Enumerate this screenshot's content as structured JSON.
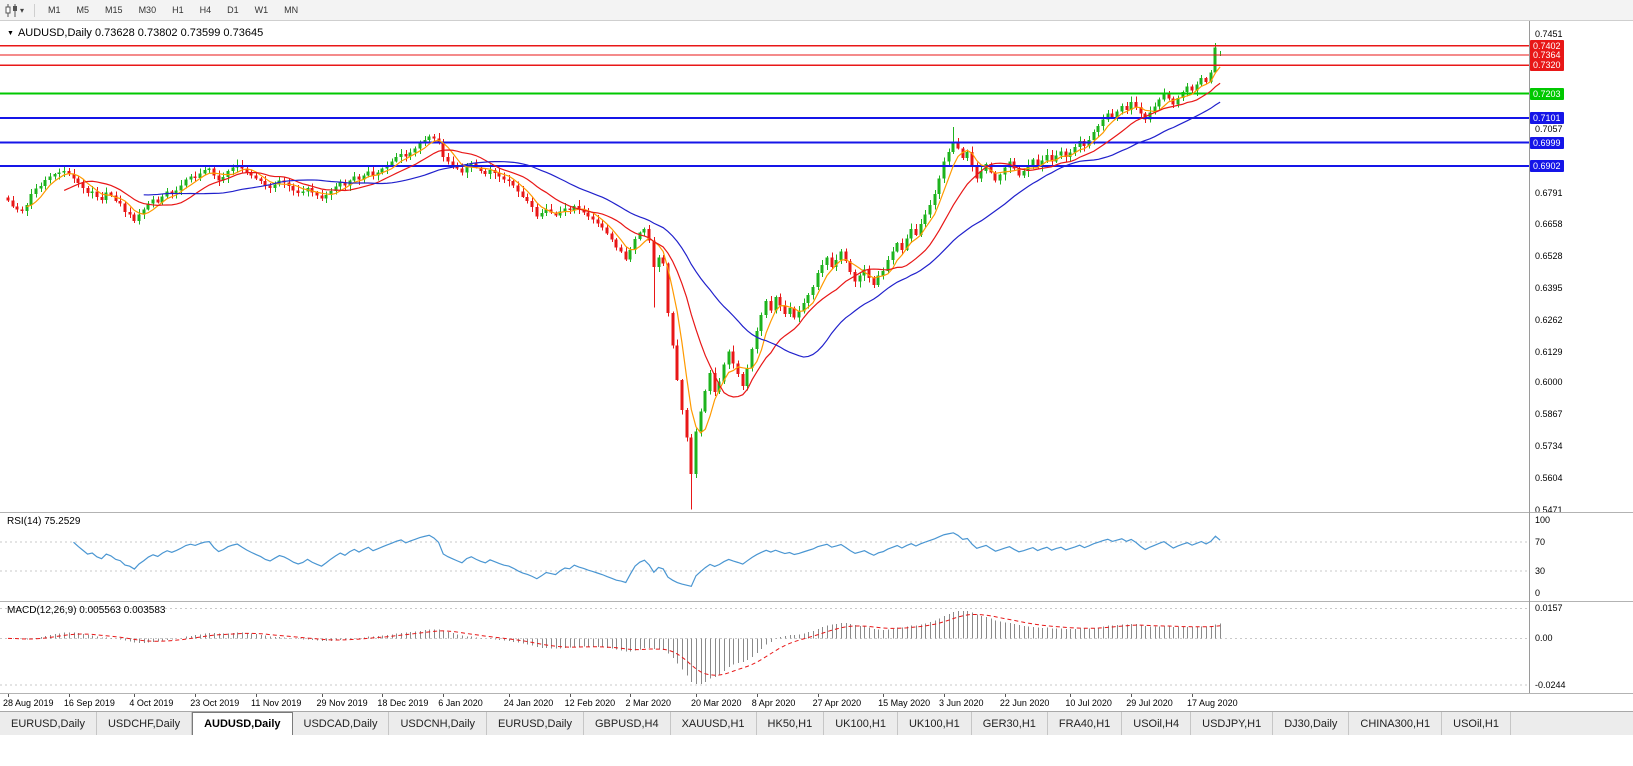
{
  "icons": {
    "chart_marker": "▼",
    "dropdown_caret": "▾"
  },
  "toolbar": {
    "timeframes": [
      "M1",
      "M5",
      "M15",
      "M30",
      "H1",
      "H4",
      "D1",
      "W1",
      "MN"
    ]
  },
  "chart": {
    "symbol_title": "AUDUSD,Daily",
    "ohlc_text": "0.73628 0.73802 0.73599 0.73645",
    "rsi_label": "RSI(14)",
    "rsi_value": "75.2529",
    "macd_label": "MACD(12,26,9)",
    "macd_values": "0.005563 0.003583"
  },
  "chart_data": {
    "type": "candlestick",
    "symbol": "AUDUSD",
    "timeframe": "Daily",
    "last_quote": {
      "open": 0.73628,
      "high": 0.73802,
      "low": 0.73599,
      "close": 0.73645
    },
    "price_range": {
      "max": 0.7505,
      "min": 0.5465
    },
    "first_open": 0.677,
    "price_axis_ticks": [
      "0.7451",
      "0.7057",
      "0.6791",
      "0.6658",
      "0.6528",
      "0.6395",
      "0.6262",
      "0.6129",
      "0.6000",
      "0.5867",
      "0.5734",
      "0.5604",
      "0.5471"
    ],
    "hlines": [
      {
        "price": 0.7402,
        "label": "0.7402",
        "color": "#e81717",
        "width": 1.4
      },
      {
        "price": 0.7364,
        "label": "0.7364",
        "color": "#e81717",
        "width": 1
      },
      {
        "price": 0.732,
        "label": "0.7320",
        "color": "#e81717",
        "width": 1.4
      },
      {
        "price": 0.7203,
        "label": "0.7203",
        "color": "#00c800",
        "width": 2
      },
      {
        "price": 0.7101,
        "label": "0.7101",
        "color": "#1515e8",
        "width": 2
      },
      {
        "price": 0.6999,
        "label": "0.6999",
        "color": "#1515e8",
        "width": 2
      },
      {
        "price": 0.6902,
        "label": "0.6902",
        "color": "#1515e8",
        "width": 2
      }
    ],
    "x_labels": [
      "28 Aug 2019",
      "16 Sep 2019",
      "4 Oct 2019",
      "23 Oct 2019",
      "11 Nov 2019",
      "29 Nov 2019",
      "18 Dec 2019",
      "6 Jan 2020",
      "24 Jan 2020",
      "12 Feb 2020",
      "2 Mar 2020",
      "20 Mar 2020",
      "8 Apr 2020",
      "27 Apr 2020",
      "15 May 2020",
      "3 Jun 2020",
      "22 Jun 2020",
      "10 Jul 2020",
      "29 Jul 2020",
      "17 Aug 2020"
    ],
    "x_label_indices": [
      0,
      13,
      27,
      40,
      53,
      67,
      80,
      93,
      107,
      120,
      133,
      147,
      160,
      173,
      187,
      200,
      213,
      227,
      240,
      253
    ],
    "closes": [
      0.6757,
      0.6732,
      0.672,
      0.6715,
      0.6738,
      0.6785,
      0.6808,
      0.6818,
      0.6843,
      0.6857,
      0.6868,
      0.6875,
      0.688,
      0.6868,
      0.685,
      0.683,
      0.681,
      0.6788,
      0.6795,
      0.6772,
      0.676,
      0.679,
      0.6778,
      0.6755,
      0.6745,
      0.671,
      0.67,
      0.6672,
      0.67,
      0.672,
      0.6745,
      0.6762,
      0.675,
      0.6775,
      0.6795,
      0.6785,
      0.68,
      0.682,
      0.6845,
      0.6858,
      0.6852,
      0.687,
      0.6885,
      0.689,
      0.6862,
      0.684,
      0.6855,
      0.688,
      0.6895,
      0.6905,
      0.689,
      0.6875,
      0.6862,
      0.685,
      0.6838,
      0.682,
      0.681,
      0.6825,
      0.684,
      0.6832,
      0.6818,
      0.68,
      0.6788,
      0.6795,
      0.681,
      0.6792,
      0.6778,
      0.6765,
      0.678,
      0.6798,
      0.6815,
      0.6832,
      0.682,
      0.6842,
      0.6858,
      0.6845,
      0.6862,
      0.6878,
      0.6862,
      0.6875,
      0.689,
      0.6905,
      0.692,
      0.6938,
      0.6952,
      0.694,
      0.6958,
      0.6975,
      0.6995,
      0.701,
      0.7025,
      0.7015,
      0.6998,
      0.6938,
      0.692,
      0.6905,
      0.689,
      0.6875,
      0.69,
      0.6912,
      0.6895,
      0.688,
      0.6868,
      0.6885,
      0.6872,
      0.6858,
      0.6845,
      0.6838,
      0.682,
      0.6795,
      0.6772,
      0.6755,
      0.673,
      0.6692,
      0.6705,
      0.672,
      0.6708,
      0.6695,
      0.6712,
      0.6725,
      0.6718,
      0.6735,
      0.672,
      0.6708,
      0.6692,
      0.6678,
      0.6662,
      0.6645,
      0.662,
      0.6595,
      0.6562,
      0.6545,
      0.6512,
      0.6552,
      0.6598,
      0.6625,
      0.664,
      0.6592,
      0.648,
      0.652,
      0.6495,
      0.629,
      0.6155,
      0.601,
      0.5885,
      0.577,
      0.562,
      0.5795,
      0.588,
      0.5965,
      0.604,
      0.596,
      0.6005,
      0.6075,
      0.613,
      0.608,
      0.6035,
      0.5985,
      0.606,
      0.614,
      0.6215,
      0.628,
      0.634,
      0.63,
      0.6355,
      0.632,
      0.6285,
      0.631,
      0.627,
      0.6295,
      0.633,
      0.6365,
      0.6398,
      0.6455,
      0.649,
      0.652,
      0.648,
      0.651,
      0.6545,
      0.6505,
      0.646,
      0.642,
      0.6445,
      0.647,
      0.6435,
      0.6405,
      0.6445,
      0.6465,
      0.651,
      0.6545,
      0.658,
      0.6552,
      0.66,
      0.664,
      0.6615,
      0.666,
      0.67,
      0.674,
      0.6785,
      0.685,
      0.692,
      0.696,
      0.7,
      0.6975,
      0.6935,
      0.696,
      0.69,
      0.685,
      0.688,
      0.691,
      0.6875,
      0.684,
      0.6865,
      0.6895,
      0.692,
      0.689,
      0.6862,
      0.688,
      0.6905,
      0.6928,
      0.6898,
      0.6925,
      0.6948,
      0.692,
      0.6945,
      0.6962,
      0.6938,
      0.6958,
      0.698,
      0.7005,
      0.6985,
      0.701,
      0.7042,
      0.7068,
      0.7095,
      0.712,
      0.7105,
      0.7128,
      0.7152,
      0.7135,
      0.7168,
      0.7148,
      0.712,
      0.7095,
      0.7125,
      0.715,
      0.7178,
      0.7205,
      0.7182,
      0.7158,
      0.7185,
      0.721,
      0.7232,
      0.7215,
      0.724,
      0.7268,
      0.7252,
      0.729,
      0.7395,
      0.73645
    ],
    "wick_low_overrides": {
      "138": 0.6313,
      "146": 0.5471
    },
    "wick_high_overrides": {
      "202": 0.7064,
      "258": 0.7413
    },
    "candle_colors": {
      "up": "#1db31d",
      "down": "#e81717"
    },
    "moving_averages": [
      {
        "period": 5,
        "color": "#ff9a00"
      },
      {
        "period": 13,
        "color": "#e81717"
      },
      {
        "period": 30,
        "color": "#2121cc"
      }
    ],
    "rsi": {
      "period": 14,
      "levels": [
        "100",
        "70",
        "30",
        "0"
      ],
      "level_values": [
        100,
        70,
        30,
        0
      ],
      "dashed": [
        70,
        30
      ],
      "color": "#4a96d2"
    },
    "macd": {
      "fast": 12,
      "slow": 26,
      "signal": 9,
      "axis_labels": [
        "0.0157",
        "0.00",
        "-0.0244"
      ],
      "axis_values": [
        0.0157,
        0,
        -0.0244
      ],
      "range": {
        "max": 0.019,
        "min": -0.028
      },
      "histogram_color": "#8a8a8a",
      "signal_color": "#e81717"
    }
  },
  "bottom_tabs": {
    "active_index": 2,
    "items": [
      "EURUSD,Daily",
      "USDCHF,Daily",
      "AUDUSD,Daily",
      "USDCAD,Daily",
      "USDCNH,Daily",
      "EURUSD,Daily",
      "GBPUSD,H4",
      "XAUUSD,H1",
      "HK50,H1",
      "UK100,H1",
      "UK100,H1",
      "GER30,H1",
      "FRA40,H1",
      "USOil,H4",
      "USDJPY,H1",
      "DJ30,Daily",
      "CHINA300,H1",
      "USOil,H1"
    ]
  }
}
